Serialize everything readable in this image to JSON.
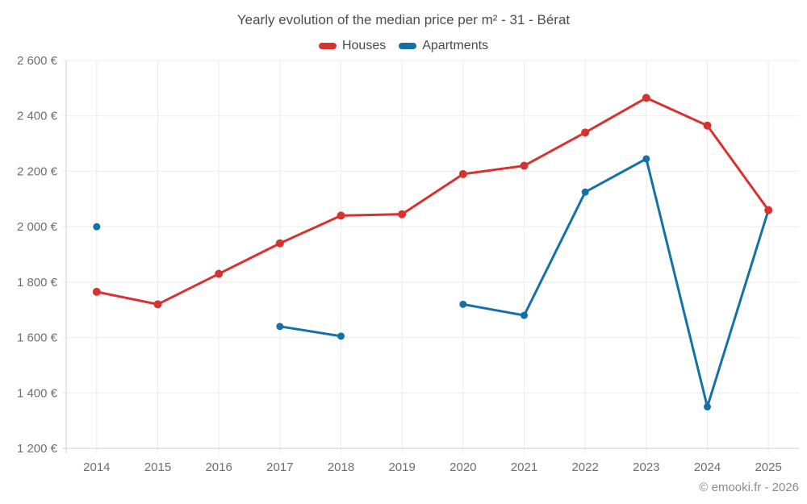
{
  "header": {
    "title": "Yearly evolution of the median price per m² - 31 - Bérat"
  },
  "legend": {
    "items": [
      {
        "label": "Houses",
        "color": "#d8312f"
      },
      {
        "label": "Apartments",
        "color": "#1471a8"
      }
    ]
  },
  "footer": {
    "credit": "© emooki.fr - 2026"
  },
  "chart_data": {
    "type": "line",
    "title": "Yearly evolution of the median price per m² - 31 - Bérat",
    "categories": [
      "2014",
      "2015",
      "2016",
      "2017",
      "2018",
      "2019",
      "2020",
      "2021",
      "2022",
      "2023",
      "2024",
      "2025"
    ],
    "series": [
      {
        "name": "Houses",
        "color": "#d8312f",
        "values": [
          1765,
          1720,
          1830,
          1940,
          2040,
          2045,
          2190,
          2220,
          2340,
          2465,
          2365,
          2060
        ]
      },
      {
        "name": "Apartments",
        "color": "#1471a8",
        "values": [
          2000,
          null,
          null,
          1640,
          1605,
          null,
          1720,
          1680,
          2125,
          2245,
          1350,
          2060
        ]
      }
    ],
    "xlabel": "",
    "ylabel": "",
    "ylim": [
      1200,
      2600
    ],
    "y_ticks": [
      {
        "value": 2600,
        "label": "2 600 €"
      },
      {
        "value": 2400,
        "label": "2 400 €"
      },
      {
        "value": 2200,
        "label": "2 200 €"
      },
      {
        "value": 2000,
        "label": "2 000 €"
      },
      {
        "value": 1800,
        "label": "1 800 €"
      },
      {
        "value": 1600,
        "label": "1 600 €"
      },
      {
        "value": 1400,
        "label": "1 400 €"
      },
      {
        "value": 1200,
        "label": "1 200 €"
      }
    ],
    "grid": true,
    "legend_position": "top",
    "colors": {
      "grid_line": "#ebebeb",
      "axis_line": "#cfcfcf",
      "tick_label": "#6e6e6e",
      "title_text": "#4d4d4d",
      "credit_text": "#8b8b8b"
    }
  }
}
